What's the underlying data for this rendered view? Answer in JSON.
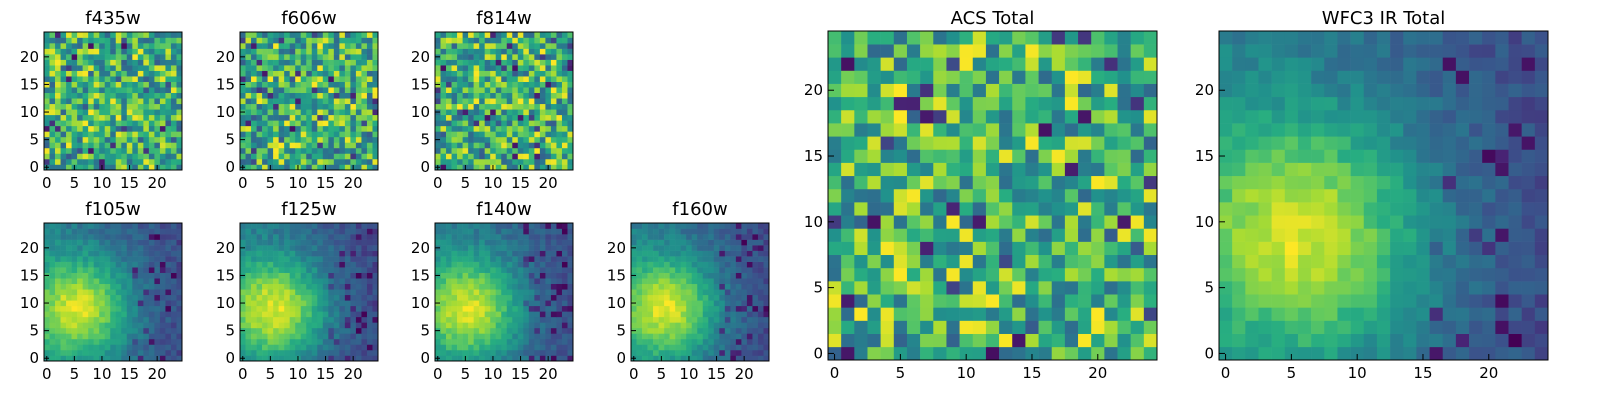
{
  "chart_data": {
    "type": "heatmap",
    "colormap": "viridis",
    "grid_size": 25,
    "panels": [
      {
        "id": "f435w",
        "title": "f435w",
        "group": "ACS",
        "xticks": [
          "0",
          "5",
          "10",
          "15",
          "20"
        ],
        "yticks": [
          "0",
          "5",
          "10",
          "15",
          "20"
        ],
        "pattern": "noise",
        "seed": 11
      },
      {
        "id": "f606w",
        "title": "f606w",
        "group": "ACS",
        "xticks": [
          "0",
          "5",
          "10",
          "15",
          "20"
        ],
        "yticks": [
          "0",
          "5",
          "10",
          "15",
          "20"
        ],
        "pattern": "noise",
        "seed": 23
      },
      {
        "id": "f814w",
        "title": "f814w",
        "group": "ACS",
        "xticks": [
          "0",
          "5",
          "10",
          "15",
          "20"
        ],
        "yticks": [
          "0",
          "5",
          "10",
          "15",
          "20"
        ],
        "pattern": "noise",
        "seed": 37
      },
      {
        "id": "f105w",
        "title": "f105w",
        "group": "WFC3 IR",
        "xticks": [
          "0",
          "5",
          "10",
          "15",
          "20"
        ],
        "yticks": [
          "0",
          "5",
          "10",
          "15",
          "20"
        ],
        "pattern": "blob",
        "seed": 41
      },
      {
        "id": "f125w",
        "title": "f125w",
        "group": "WFC3 IR",
        "xticks": [
          "0",
          "5",
          "10",
          "15",
          "20"
        ],
        "yticks": [
          "0",
          "5",
          "10",
          "15",
          "20"
        ],
        "pattern": "blob",
        "seed": 53
      },
      {
        "id": "f140w",
        "title": "f140w",
        "group": "WFC3 IR",
        "xticks": [
          "0",
          "5",
          "10",
          "15",
          "20"
        ],
        "yticks": [
          "0",
          "5",
          "10",
          "15",
          "20"
        ],
        "pattern": "blob",
        "seed": 67
      },
      {
        "id": "f160w",
        "title": "f160w",
        "group": "WFC3 IR",
        "xticks": [
          "0",
          "5",
          "10",
          "15",
          "20"
        ],
        "yticks": [
          "0",
          "5",
          "10",
          "15",
          "20"
        ],
        "pattern": "blob",
        "seed": 79
      },
      {
        "id": "acs-total",
        "title": "ACS Total",
        "group": "ACS",
        "xticks": [
          "0",
          "5",
          "10",
          "15",
          "20"
        ],
        "yticks": [
          "0",
          "5",
          "10",
          "15",
          "20"
        ],
        "pattern": "noise",
        "seed": 97
      },
      {
        "id": "wfc3-ir-total",
        "title": "WFC3 IR Total",
        "group": "WFC3 IR",
        "xticks": [
          "0",
          "5",
          "10",
          "15",
          "20"
        ],
        "yticks": [
          "0",
          "5",
          "10",
          "15",
          "20"
        ],
        "pattern": "blob",
        "seed": 113
      }
    ],
    "xlim": [
      -0.5,
      24.5
    ],
    "ylim": [
      -0.5,
      24.5
    ],
    "xlabel": "",
    "ylabel": "",
    "grid": false
  }
}
